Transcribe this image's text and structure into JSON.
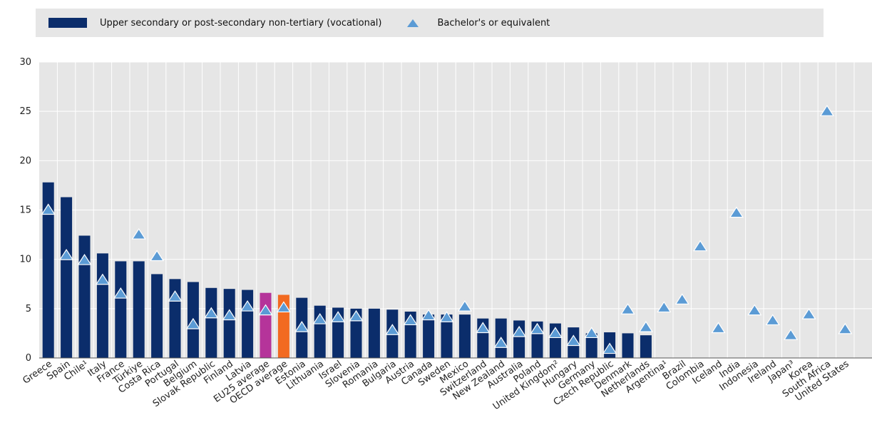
{
  "legend": {
    "series1": "Upper secondary or post-secondary non-tertiary (vocational)",
    "series2": "Bachelor's or equivalent"
  },
  "colors": {
    "bar": "#0b2d6b",
    "eu_average": "#b5349a",
    "oecd_average": "#f26a21",
    "triangle": "#5b9bd5",
    "plot_background": "#e6e6e6"
  },
  "chart_data": {
    "type": "bar",
    "ylim": [
      0,
      30
    ],
    "yticks": [
      0,
      5,
      10,
      15,
      20,
      25,
      30
    ],
    "grid": true,
    "legend_position": "top",
    "categories": [
      "Greece",
      "Spain",
      "Chile¹",
      "Italy",
      "France",
      "Türkiye",
      "Costa Rica",
      "Portugal",
      "Belgium",
      "Slovak Republic",
      "Finland",
      "Latvia",
      "EU25 average",
      "OECD average",
      "Estonia",
      "Lithuania",
      "Israel",
      "Slovenia",
      "Romania",
      "Bulgaria",
      "Austria",
      "Canada",
      "Sweden",
      "Mexico",
      "Switzerland",
      "New Zealand",
      "Australia",
      "Poland",
      "United Kingdom²",
      "Hungary",
      "Germany",
      "Czech Republic",
      "Denmark",
      "Netherlands",
      "Argentina¹",
      "Brazil",
      "Colombia",
      "Iceland",
      "India",
      "Indonesia",
      "Ireland",
      "Japan³",
      "Korea",
      "South Africa",
      "United States"
    ],
    "series": [
      {
        "name": "Upper secondary or post-secondary non-tertiary (vocational)",
        "type": "bar",
        "values": [
          17.8,
          16.3,
          12.4,
          10.6,
          9.8,
          9.8,
          8.5,
          8.0,
          7.7,
          7.1,
          7.0,
          6.9,
          6.6,
          6.4,
          6.1,
          5.3,
          5.1,
          5.0,
          5.0,
          4.9,
          4.7,
          4.4,
          4.4,
          4.4,
          4.0,
          4.0,
          3.8,
          3.7,
          3.5,
          3.1,
          2.5,
          2.6,
          2.5,
          2.3,
          null,
          null,
          null,
          null,
          null,
          null,
          null,
          null,
          null,
          null,
          null
        ]
      },
      {
        "name": "Bachelor's or equivalent",
        "type": "triangle",
        "values": [
          15.0,
          10.4,
          9.9,
          7.9,
          6.5,
          12.5,
          10.3,
          6.2,
          3.4,
          4.5,
          4.3,
          5.2,
          4.8,
          5.1,
          3.1,
          3.9,
          4.1,
          4.2,
          null,
          2.8,
          3.8,
          4.3,
          4.1,
          5.2,
          3.0,
          1.5,
          2.6,
          2.9,
          2.5,
          1.7,
          2.5,
          0.9,
          4.9,
          3.1,
          5.1,
          5.9,
          11.3,
          3.0,
          14.7,
          4.8,
          3.8,
          2.3,
          4.4,
          25.0,
          2.9
        ]
      }
    ]
  }
}
